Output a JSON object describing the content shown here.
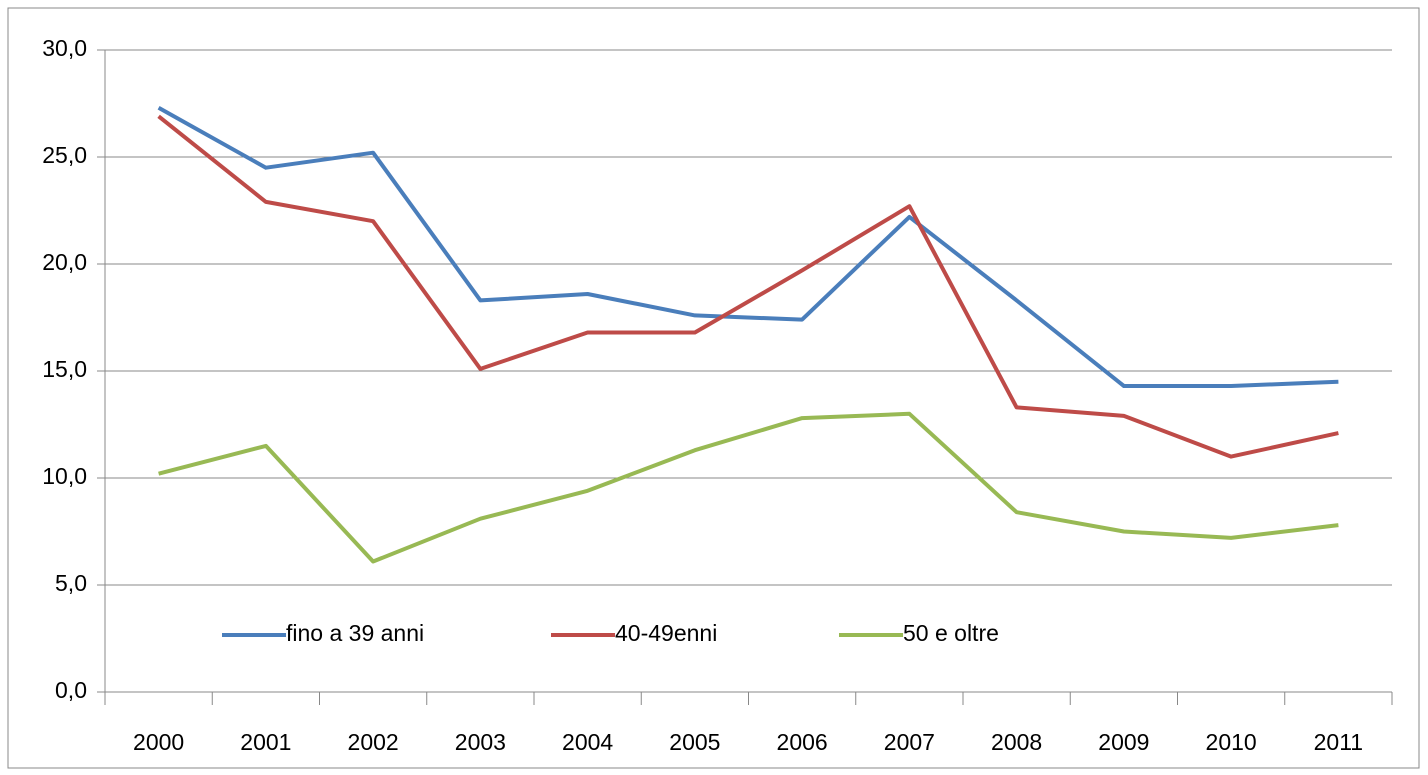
{
  "chart_data": {
    "type": "line",
    "categories": [
      "2000",
      "2001",
      "2002",
      "2003",
      "2004",
      "2005",
      "2006",
      "2007",
      "2008",
      "2009",
      "2010",
      "2011"
    ],
    "series": [
      {
        "name": "fino a 39 anni",
        "color": "#4a7ebb",
        "values": [
          27.3,
          24.5,
          25.2,
          18.3,
          18.6,
          17.6,
          17.4,
          22.2,
          18.3,
          14.3,
          14.3,
          14.5
        ]
      },
      {
        "name": "40-49enni",
        "color": "#be4b48",
        "values": [
          26.9,
          22.9,
          22.0,
          15.1,
          16.8,
          16.8,
          19.7,
          22.7,
          13.3,
          12.9,
          11.0,
          12.1
        ]
      },
      {
        "name": "50 e oltre",
        "color": "#98b954",
        "values": [
          10.2,
          11.5,
          6.1,
          8.1,
          9.4,
          11.3,
          12.8,
          13.0,
          8.4,
          7.5,
          7.2,
          7.8
        ]
      }
    ],
    "ylim": [
      0,
      30
    ],
    "yticks": [
      {
        "value": 0,
        "label": "0,0"
      },
      {
        "value": 5,
        "label": "5,0"
      },
      {
        "value": 10,
        "label": "10,0"
      },
      {
        "value": 15,
        "label": "15,0"
      },
      {
        "value": 20,
        "label": "20,0"
      },
      {
        "value": 25,
        "label": "25,0"
      },
      {
        "value": 30,
        "label": "30,0"
      }
    ],
    "grid": true,
    "legend": "inside bottom"
  }
}
